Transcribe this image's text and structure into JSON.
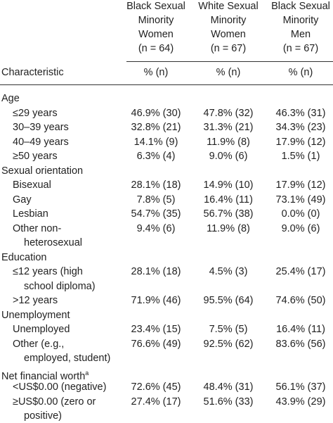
{
  "columns": [
    {
      "heading": [
        "Black Sexual",
        "Minority",
        "Women",
        "(n = 64)"
      ],
      "unit": "% (n)"
    },
    {
      "heading": [
        "White Sexual",
        "Minority",
        "Women",
        "(n = 67)"
      ],
      "unit": "% (n)"
    },
    {
      "heading": [
        "Black Sexual",
        "Minority",
        "Men",
        "(n = 67)"
      ],
      "unit": "% (n)"
    }
  ],
  "stub_heading": "Characteristic",
  "sections": [
    {
      "title": "Age",
      "rows": [
        {
          "label": [
            "≤29 years"
          ],
          "values": [
            "46.9% (30)",
            "47.8% (32)",
            "46.3% (31)"
          ]
        },
        {
          "label": [
            "30–39 years"
          ],
          "values": [
            "32.8% (21)",
            "31.3% (21)",
            "34.3% (23)"
          ]
        },
        {
          "label": [
            "40–49 years"
          ],
          "values": [
            "14.1% (9)",
            "11.9% (8)",
            "17.9% (12)"
          ]
        },
        {
          "label": [
            "≥50 years"
          ],
          "values": [
            "6.3% (4)",
            "9.0% (6)",
            "1.5% (1)"
          ]
        }
      ]
    },
    {
      "title": "Sexual orientation",
      "rows": [
        {
          "label": [
            "Bisexual"
          ],
          "values": [
            "28.1% (18)",
            "14.9% (10)",
            "17.9% (12)"
          ]
        },
        {
          "label": [
            "Gay"
          ],
          "values": [
            "7.8% (5)",
            "16.4% (11)",
            "73.1% (49)"
          ]
        },
        {
          "label": [
            "Lesbian"
          ],
          "values": [
            "54.7% (35)",
            "56.7% (38)",
            "0.0% (0)"
          ]
        },
        {
          "label": [
            "Other non-",
            "heterosexual"
          ],
          "values": [
            "9.4% (6)",
            "11.9% (8)",
            "9.0% (6)"
          ]
        }
      ]
    },
    {
      "title": "Education",
      "rows": [
        {
          "label": [
            "≤12 years (high",
            "school diploma)"
          ],
          "values": [
            "28.1% (18)",
            "4.5% (3)",
            "25.4% (17)"
          ]
        },
        {
          "label": [
            ">12 years"
          ],
          "values": [
            "71.9% (46)",
            "95.5% (64)",
            "74.6% (50)"
          ]
        }
      ]
    },
    {
      "title": "Unemployment",
      "rows": [
        {
          "label": [
            "Unemployed"
          ],
          "values": [
            "23.4% (15)",
            "7.5% (5)",
            "16.4% (11)"
          ]
        },
        {
          "label": [
            "Other (e.g.,",
            "employed, student)"
          ],
          "values": [
            "76.6% (49)",
            "92.5% (62)",
            "83.6% (56)"
          ]
        }
      ]
    },
    {
      "title": "Net financial worth",
      "title_sup": "a",
      "rows": [
        {
          "label": [
            "<US$0.00 (negative)"
          ],
          "values": [
            "72.6% (45)",
            "48.4% (31)",
            "56.1% (37)"
          ]
        },
        {
          "label": [
            "≥US$0.00 (zero or",
            "positive)"
          ],
          "values": [
            "27.4% (17)",
            "51.6% (33)",
            "43.9% (29)"
          ]
        }
      ]
    }
  ]
}
